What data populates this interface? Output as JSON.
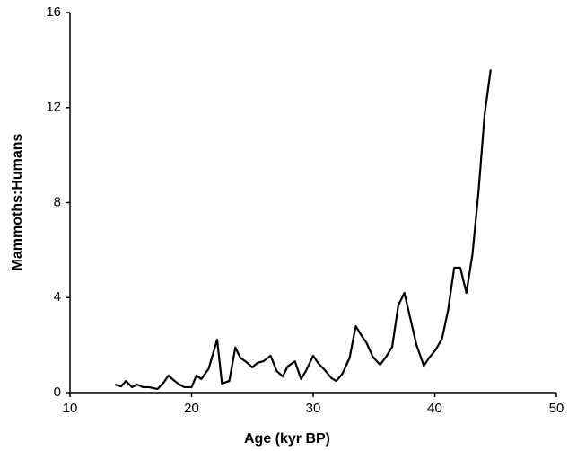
{
  "chart_data": {
    "type": "line",
    "xlabel": "Age (kyr BP)",
    "ylabel": "Mammoths:Humans",
    "x": [
      13.7,
      14.2,
      14.6,
      15.1,
      15.5,
      16.0,
      16.5,
      17.2,
      17.7,
      18.1,
      18.6,
      19.0,
      19.4,
      20.0,
      20.4,
      20.8,
      21.4,
      22.1,
      22.5,
      23.1,
      23.6,
      24.0,
      24.5,
      25.0,
      25.4,
      25.9,
      26.5,
      27.0,
      27.5,
      27.9,
      28.5,
      29.0,
      29.4,
      30.0,
      30.4,
      30.9,
      31.5,
      31.9,
      32.4,
      33.0,
      33.5,
      33.9,
      34.4,
      34.9,
      35.5,
      36.0,
      36.5,
      37.0,
      37.5,
      38.0,
      38.5,
      39.1,
      39.5,
      40.1,
      40.6,
      41.1,
      41.6,
      42.1,
      42.6,
      43.1,
      43.6,
      44.1,
      44.6
    ],
    "values": [
      0.34,
      0.26,
      0.49,
      0.23,
      0.34,
      0.23,
      0.23,
      0.15,
      0.42,
      0.72,
      0.49,
      0.34,
      0.23,
      0.23,
      0.72,
      0.57,
      1.0,
      2.23,
      0.38,
      0.49,
      1.9,
      1.47,
      1.29,
      1.06,
      1.25,
      1.32,
      1.55,
      0.91,
      0.68,
      1.1,
      1.32,
      0.57,
      0.91,
      1.55,
      1.25,
      0.98,
      0.61,
      0.49,
      0.79,
      1.47,
      2.8,
      2.46,
      2.08,
      1.51,
      1.17,
      1.51,
      1.93,
      3.67,
      4.2,
      3.1,
      2.0,
      1.13,
      1.44,
      1.82,
      2.27,
      3.48,
      5.26,
      5.26,
      4.2,
      5.82,
      8.47,
      11.7,
      13.6
    ],
    "color": "#000000",
    "xlim": [
      10,
      50
    ],
    "xticks": [
      10,
      20,
      30,
      40,
      50
    ],
    "ylim": [
      0,
      16
    ],
    "yticks": [
      0,
      4,
      8,
      12,
      16
    ]
  }
}
